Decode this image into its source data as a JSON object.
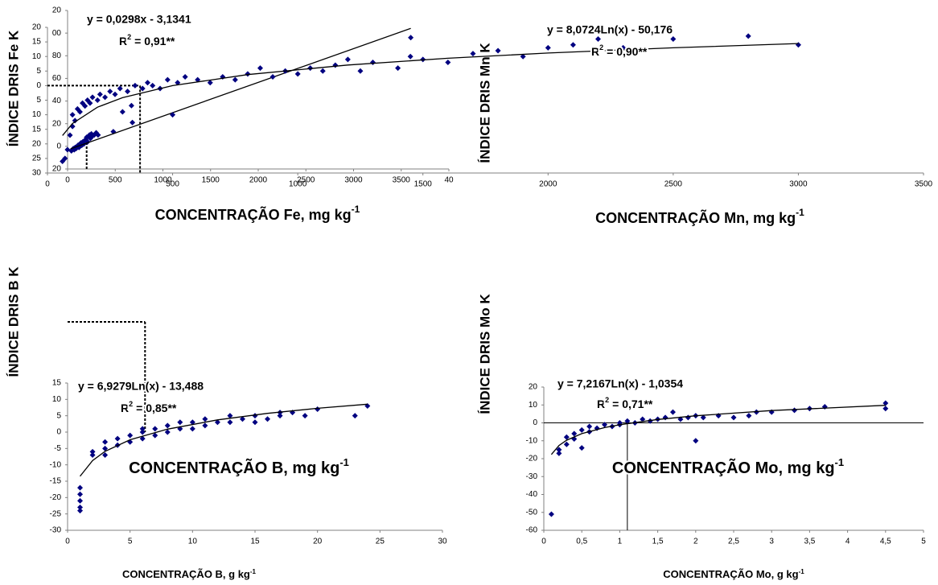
{
  "chart_data": [
    {
      "type": "scatter",
      "y_label": "ÍNDICE DRIS Fe K",
      "x_label": "CONCENTRAÇÃO Fe, mg kg",
      "x_label_sup": "-1",
      "equation": "y = 0,0298x - 3,1341",
      "r2": "R",
      "r2_sup": "2",
      "r2_text": "= 0,91**",
      "color": "#000080",
      "xlim": [
        0,
        4000
      ],
      "ylim": [
        -20,
        120
      ],
      "xticks": [
        0,
        500,
        1000,
        1500,
        2000,
        2500,
        3000,
        3500,
        {
          "value": 4000,
          "label": "40"
        }
      ],
      "yticks": [
        {
          "value": 120,
          "label": "20"
        },
        {
          "value": 100,
          "label": "00"
        },
        80,
        60,
        40,
        20,
        0,
        {
          "value": -20,
          "label": "20"
        }
      ],
      "x": [
        40,
        50,
        60,
        70,
        80,
        90,
        100,
        110,
        120,
        130,
        140,
        150,
        160,
        170,
        180,
        190,
        200,
        210,
        220,
        230,
        240,
        250,
        260,
        280,
        300,
        320,
        480,
        670,
        680,
        3600
      ],
      "values": [
        -4,
        -3,
        -2,
        -3,
        -1,
        -2,
        0,
        1,
        -1,
        2,
        3,
        1,
        4,
        2,
        5,
        6,
        8,
        4,
        9,
        10,
        7,
        11,
        9,
        10,
        12,
        10,
        13,
        36,
        21,
        96
      ],
      "trend": {
        "x": [
          30,
          3600
        ],
        "values": [
          -2.24,
          104.15
        ]
      },
      "guide_style": "dashed",
      "guides": [
        {
          "x": [
            200,
            200
          ],
          "values": [
            -20,
            3
          ]
        }
      ]
    },
    {
      "type": "scatter",
      "y_label": "ÍNDICE DRIS Mn K",
      "x_label": "CONCENTRAÇÃO Mn, mg kg",
      "x_label_sup": "-1",
      "equation": "y = 8,0724Ln(x) - 50,176",
      "r2": "R",
      "r2_sup": "2",
      "r2_text": "= 0,90**",
      "color": "#000080",
      "xlim": [
        0,
        3500
      ],
      "ylim": [
        -30,
        20
      ],
      "xticks": [
        0,
        500,
        1000,
        1500,
        2000,
        2500,
        3000,
        3500
      ],
      "yticks": [
        20,
        15,
        10,
        5,
        0,
        {
          "value": -5,
          "label": "5"
        },
        {
          "value": -10,
          "label": "10"
        },
        {
          "value": -15,
          "label": "15"
        },
        {
          "value": -20,
          "label": "20"
        },
        {
          "value": -25,
          "label": "25"
        },
        {
          "value": -30,
          "label": "30"
        }
      ],
      "x": [
        60,
        70,
        80,
        90,
        100,
        100,
        110,
        120,
        130,
        140,
        150,
        160,
        170,
        180,
        200,
        210,
        230,
        250,
        270,
        290,
        300,
        320,
        350,
        380,
        400,
        420,
        450,
        480,
        500,
        520,
        550,
        600,
        650,
        700,
        750,
        800,
        850,
        900,
        950,
        1000,
        1050,
        1100,
        1150,
        1200,
        1250,
        1300,
        1400,
        1450,
        1500,
        1600,
        1700,
        1800,
        1900,
        2000,
        2100,
        2200,
        2300,
        2500,
        2800,
        3000
      ],
      "values": [
        -26,
        -25,
        -22,
        -17,
        -14,
        -10,
        -12,
        -8,
        -9,
        -6,
        -7,
        -5,
        -6,
        -4,
        -5,
        -3,
        -4,
        -2,
        -3,
        -1,
        -9,
        -2,
        0,
        -1,
        1,
        0,
        -1,
        2,
        -10,
        1,
        3,
        2,
        1,
        3,
        2,
        4,
        6,
        3,
        5,
        4,
        6,
        5,
        7,
        9,
        5,
        8,
        6,
        10,
        9,
        8,
        11,
        12,
        10,
        13,
        14,
        16,
        13,
        16,
        17,
        14
      ],
      "trend": {
        "x": [
          60,
          100,
          200,
          300,
          500,
          800,
          1200,
          1600,
          2000,
          2500,
          3000
        ],
        "values": [
          -17.12,
          -13.0,
          -7.41,
          -4.13,
          -0.01,
          3.79,
          7.06,
          9.38,
          11.18,
          12.98,
          14.45
        ]
      },
      "guide_style": "dashed",
      "guides": [
        {
          "x": [
            0,
            370
          ],
          "values": [
            0,
            0
          ]
        },
        {
          "x": [
            370,
            370
          ],
          "values": [
            0,
            -30
          ]
        }
      ]
    },
    {
      "type": "scatter",
      "y_label": "ÍNDICE DRIS B K",
      "x_label": "CONCENTRAÇÃO B, g kg",
      "x_label_sup": "-1",
      "annotation": "CONCENTRAÇÃO B, mg kg",
      "annotation_sup": "-1",
      "equation": "y = 6,9279Ln(x) - 13,488",
      "r2": "R",
      "r2_sup": "2",
      "r2_text": "= 0,85**",
      "color": "#000080",
      "xlim": [
        0,
        30
      ],
      "ylim": [
        -30,
        15
      ],
      "xticks": [
        0,
        5,
        10,
        15,
        20,
        25,
        30
      ],
      "yticks": [
        15,
        10,
        5,
        0,
        -5,
        -10,
        -15,
        -20,
        -25,
        -30
      ],
      "x": [
        1,
        1,
        1,
        1,
        1,
        2,
        2,
        3,
        3,
        3,
        4,
        4,
        5,
        5,
        6,
        6,
        6,
        7,
        7,
        8,
        8,
        9,
        9,
        10,
        10,
        11,
        11,
        12,
        13,
        13,
        14,
        15,
        15,
        16,
        17,
        17,
        18,
        19,
        20,
        23,
        24
      ],
      "values": [
        -17,
        -19,
        -21,
        -23,
        -24,
        -7,
        -6,
        -7,
        -5,
        -3,
        -4,
        -2,
        -3,
        -1,
        -2,
        0,
        1,
        -1,
        1,
        0,
        2,
        1,
        3,
        1,
        3,
        2,
        4,
        3,
        3,
        5,
        4,
        3,
        5,
        4,
        5,
        6,
        6,
        5,
        7,
        5,
        8
      ],
      "trend": {
        "x": [
          1,
          2,
          3,
          5,
          8,
          12,
          16,
          20,
          24
        ],
        "values": [
          -13.49,
          -8.69,
          -5.88,
          -2.34,
          0.92,
          3.73,
          5.72,
          7.27,
          8.53
        ]
      },
      "guide_style": "dashed",
      "guides": [
        {
          "x": [
            0,
            6.2
          ],
          "values": [
            33.7,
            33.7
          ]
        },
        {
          "x": [
            6.2,
            6.2
          ],
          "values": [
            33.7,
            0
          ]
        }
      ]
    },
    {
      "type": "scatter",
      "y_label": "ÍNDICE DRIS Mo K",
      "x_label": "CONCENTRAÇÃO Mo, g kg",
      "x_label_sup": "-1",
      "annotation": "CONCENTRAÇÃO Mo, mg kg",
      "annotation_sup": "-1",
      "equation": "y = 7,2167Ln(x) - 1,0354",
      "r2": "R",
      "r2_sup": "2",
      "r2_text": "= 0,71**",
      "color": "#000080",
      "xlim": [
        0,
        5
      ],
      "ylim": [
        -60,
        20
      ],
      "xticks": [
        0,
        {
          "value": 0.5,
          "label": "0,5"
        },
        1,
        {
          "value": 1.5,
          "label": "1,5"
        },
        2,
        {
          "value": 2.5,
          "label": "2,5"
        },
        3,
        {
          "value": 3.5,
          "label": "3,5"
        },
        4,
        {
          "value": 4.5,
          "label": "4,5"
        },
        5
      ],
      "yticks": [
        20,
        10,
        0,
        -10,
        -20,
        -30,
        -40,
        -50,
        -60
      ],
      "x": [
        0.1,
        0.2,
        0.2,
        0.3,
        0.3,
        0.4,
        0.4,
        0.5,
        0.5,
        0.6,
        0.6,
        0.7,
        0.8,
        0.9,
        1,
        1,
        1.1,
        1.2,
        1.3,
        1.4,
        1.5,
        1.6,
        1.7,
        1.8,
        1.9,
        2,
        2,
        2.1,
        2.3,
        2.5,
        2.7,
        2.8,
        3,
        3.3,
        3.5,
        3.7,
        4.5,
        4.5
      ],
      "values": [
        -51,
        -17,
        -15,
        -12,
        -8,
        -9,
        -6,
        -14,
        -4,
        -5,
        -2,
        -3,
        -1,
        -2,
        0,
        -1,
        1,
        0,
        2,
        1,
        2,
        3,
        6,
        2,
        3,
        -10,
        4,
        3,
        4,
        3,
        4,
        6,
        6,
        7,
        8,
        9,
        8,
        11
      ],
      "trend": {
        "x": [
          0.1,
          0.2,
          0.3,
          0.5,
          0.8,
          1,
          1.5,
          2,
          3,
          4.5
        ],
        "values": [
          -17.65,
          -12.65,
          -9.72,
          -6.04,
          -2.65,
          -1.04,
          1.89,
          3.97,
          6.89,
          9.82
        ]
      },
      "guide_style": "solid",
      "guides": [
        {
          "x": [
            0,
            5
          ],
          "values": [
            0,
            0
          ]
        },
        {
          "x": [
            1.1,
            1.1
          ],
          "values": [
            0,
            -60
          ]
        }
      ]
    }
  ]
}
